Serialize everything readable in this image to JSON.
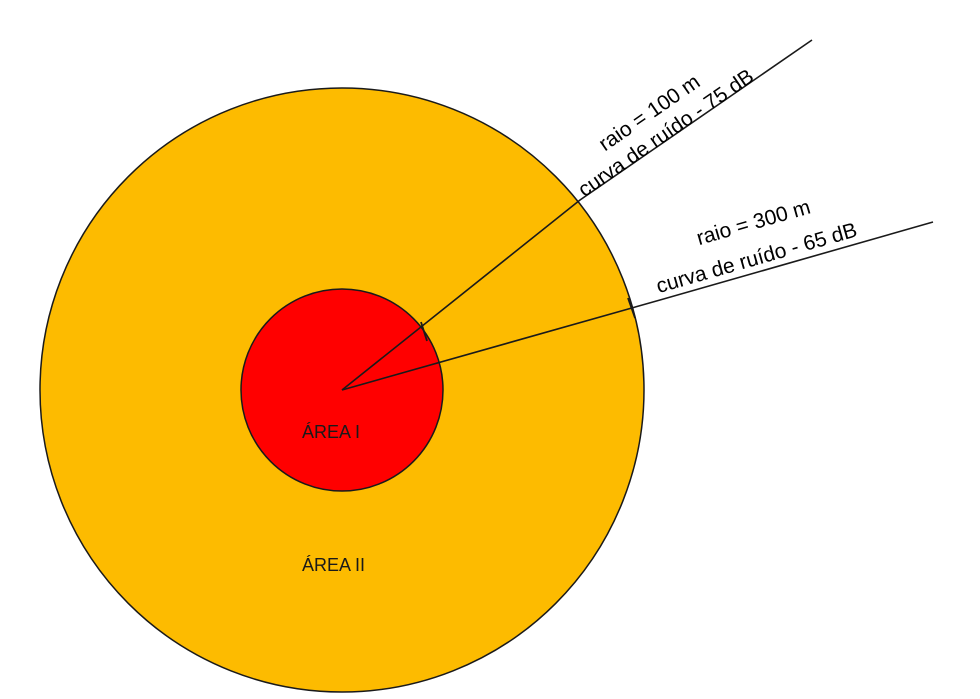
{
  "colors": {
    "outer_zone": "#FDBB00",
    "inner_zone": "#FF0000",
    "stroke": "#1a1a1a",
    "background": "#FFFFFF"
  },
  "zones": {
    "inner": {
      "label": "ÁREA I"
    },
    "outer": {
      "label": "ÁREA II"
    }
  },
  "leaders": {
    "inner": {
      "line1": "raio = 100 m",
      "line2": "curva de ruído - 75 dB"
    },
    "outer": {
      "line1": "raio = 300 m",
      "line2": "curva de ruído - 65 dB"
    }
  }
}
